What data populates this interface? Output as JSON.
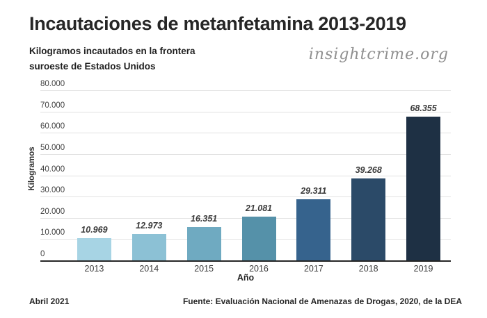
{
  "header": {
    "title": "Incautaciones de metanfetamina 2013-2019",
    "subtitle_line1": "Kilogramos incautados en la frontera",
    "subtitle_line2": "suroeste de Estados Unidos",
    "logo": "insightcrime.org"
  },
  "footer": {
    "date": "Abril 2021",
    "source": "Fuente: Evaluación Nacional de Amenazas de Drogas, 2020, de la DEA"
  },
  "chart_data": {
    "type": "bar",
    "title": "Incautaciones de metanfetamina 2013-2019",
    "subtitle": "Kilogramos incautados en la frontera suroeste de Estados Unidos",
    "categories": [
      "2013",
      "2014",
      "2015",
      "2016",
      "2017",
      "2018",
      "2019"
    ],
    "values": [
      10969,
      12973,
      16351,
      21081,
      29311,
      39268,
      68355
    ],
    "value_labels": [
      "10.969",
      "12.973",
      "16.351",
      "21.081",
      "29.311",
      "39.268",
      "68.355"
    ],
    "bar_colors": [
      "#a7d4e4",
      "#8cc1d5",
      "#6faac1",
      "#5591a9",
      "#36638d",
      "#2b4a68",
      "#1e3044"
    ],
    "xlabel": "Año",
    "ylabel": "Kilogramos",
    "ylim": [
      0,
      80000
    ],
    "y_ticks": [
      {
        "value": 0,
        "label": "0"
      },
      {
        "value": 10000,
        "label": "10.000"
      },
      {
        "value": 20000,
        "label": "20.000"
      },
      {
        "value": 30000,
        "label": "30.000"
      },
      {
        "value": 40000,
        "label": "40.000"
      },
      {
        "value": 50000,
        "label": "50.000"
      },
      {
        "value": 60000,
        "label": "60.000"
      },
      {
        "value": 70000,
        "label": "70.000"
      },
      {
        "value": 80000,
        "label": "80.000"
      }
    ],
    "grid": true,
    "legend": "none",
    "gridline_color": "#e2e2e2",
    "axis_color": "#262626"
  }
}
